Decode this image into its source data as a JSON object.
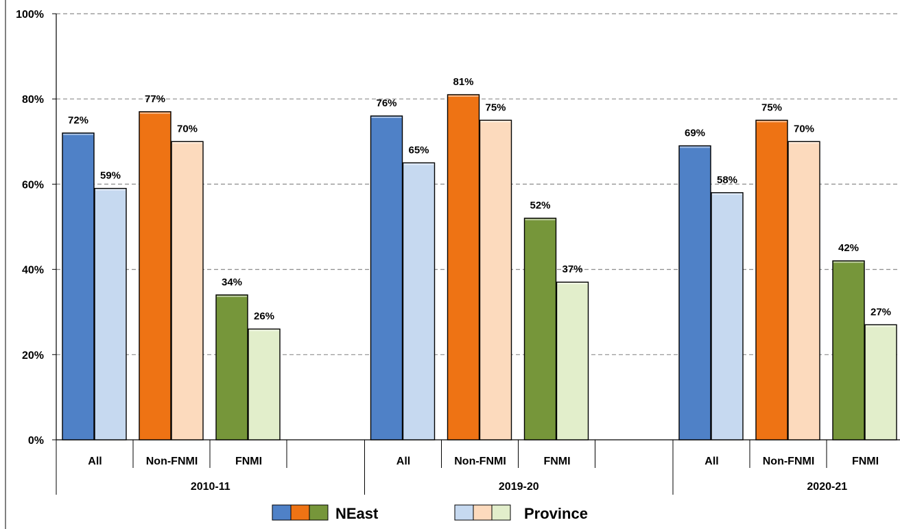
{
  "chart_data": {
    "type": "bar",
    "title": "",
    "ylabel": "",
    "xlabel": "",
    "ylim": [
      0,
      100
    ],
    "yticks": [
      "0%",
      "20%",
      "40%",
      "60%",
      "80%",
      "100%"
    ],
    "grid": true,
    "legend_position": "bottom",
    "groups": [
      {
        "label": "2010-11",
        "categories": [
          {
            "label": "All",
            "neast": 72,
            "province": 59,
            "neast_label": "72%",
            "province_label": "59%"
          },
          {
            "label": "Non-FNMI",
            "neast": 77,
            "province": 70,
            "neast_label": "77%",
            "province_label": "70%"
          },
          {
            "label": "FNMI",
            "neast": 34,
            "province": 26,
            "neast_label": "34%",
            "province_label": "26%"
          }
        ]
      },
      {
        "label": "2019-20",
        "categories": [
          {
            "label": "All",
            "neast": 76,
            "province": 65,
            "neast_label": "76%",
            "province_label": "65%"
          },
          {
            "label": "Non-FNMI",
            "neast": 81,
            "province": 75,
            "neast_label": "81%",
            "province_label": "75%"
          },
          {
            "label": "FNMI",
            "neast": 52,
            "province": 37,
            "neast_label": "52%",
            "province_label": "37%"
          }
        ]
      },
      {
        "label": "2020-21",
        "categories": [
          {
            "label": "All",
            "neast": 69,
            "province": 58,
            "neast_label": "69%",
            "province_label": "58%"
          },
          {
            "label": "Non-FNMI",
            "neast": 75,
            "province": 70,
            "neast_label": "75%",
            "province_label": "70%"
          },
          {
            "label": "FNMI",
            "neast": 42,
            "province": 27,
            "neast_label": "42%",
            "province_label": "27%"
          }
        ]
      }
    ],
    "legend": [
      {
        "name": "NEast",
        "colors": [
          "#4f81c7",
          "#ee7314",
          "#76963a"
        ]
      },
      {
        "name": "Province",
        "colors": [
          "#c6d9f0",
          "#fcdabd",
          "#e2eecb"
        ]
      }
    ],
    "colors": {
      "All": {
        "neast": "#4f81c7",
        "province": "#c6d9f0"
      },
      "Non-FNMI": {
        "neast": "#ee7314",
        "province": "#fcdabd"
      },
      "FNMI": {
        "neast": "#76963a",
        "province": "#e2eecb"
      }
    }
  }
}
